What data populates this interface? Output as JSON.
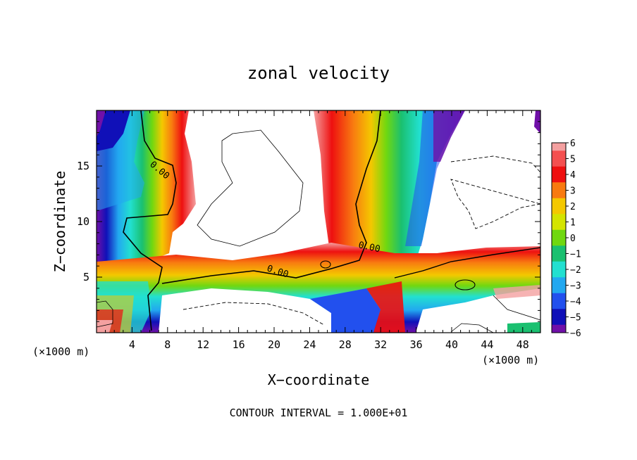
{
  "chart_data": {
    "type": "heatmap",
    "title": "zonal velocity",
    "xlabel": "X−coordinate",
    "ylabel": "Z−coordinate",
    "x_unit": "(×1000 m)",
    "xlim": [
      0,
      50
    ],
    "ylim": [
      0,
      20
    ],
    "x_ticks": [
      "4",
      "8",
      "12",
      "16",
      "20",
      "24",
      "28",
      "32",
      "36",
      "40",
      "44",
      "48"
    ],
    "x_tick_values": [
      4,
      8,
      12,
      16,
      20,
      24,
      28,
      32,
      36,
      40,
      44,
      48
    ],
    "y_ticks": [
      "5",
      "10",
      "15"
    ],
    "y_tick_values": [
      5,
      10,
      15
    ],
    "colorbar": {
      "min": -6,
      "max": 6,
      "labels": [
        "6",
        "5",
        "4",
        "3",
        "2",
        "1",
        "0",
        "−1",
        "−2",
        "−3",
        "−4",
        "−5",
        "−6"
      ],
      "colors": [
        "#f4a0a0",
        "#f45050",
        "#ee1010",
        "#f87a10",
        "#f4c800",
        "#d4e400",
        "#70d810",
        "#1ac070",
        "#22e0d0",
        "#22a8f0",
        "#2250ee",
        "#1010b8",
        "#7010a8"
      ]
    },
    "contour_labels": [
      "0.00",
      "0.00",
      "0.00"
    ],
    "footer": "CONTOUR INTERVAL = 1.000E+01",
    "grid": false,
    "legend": "colorbar-right"
  }
}
